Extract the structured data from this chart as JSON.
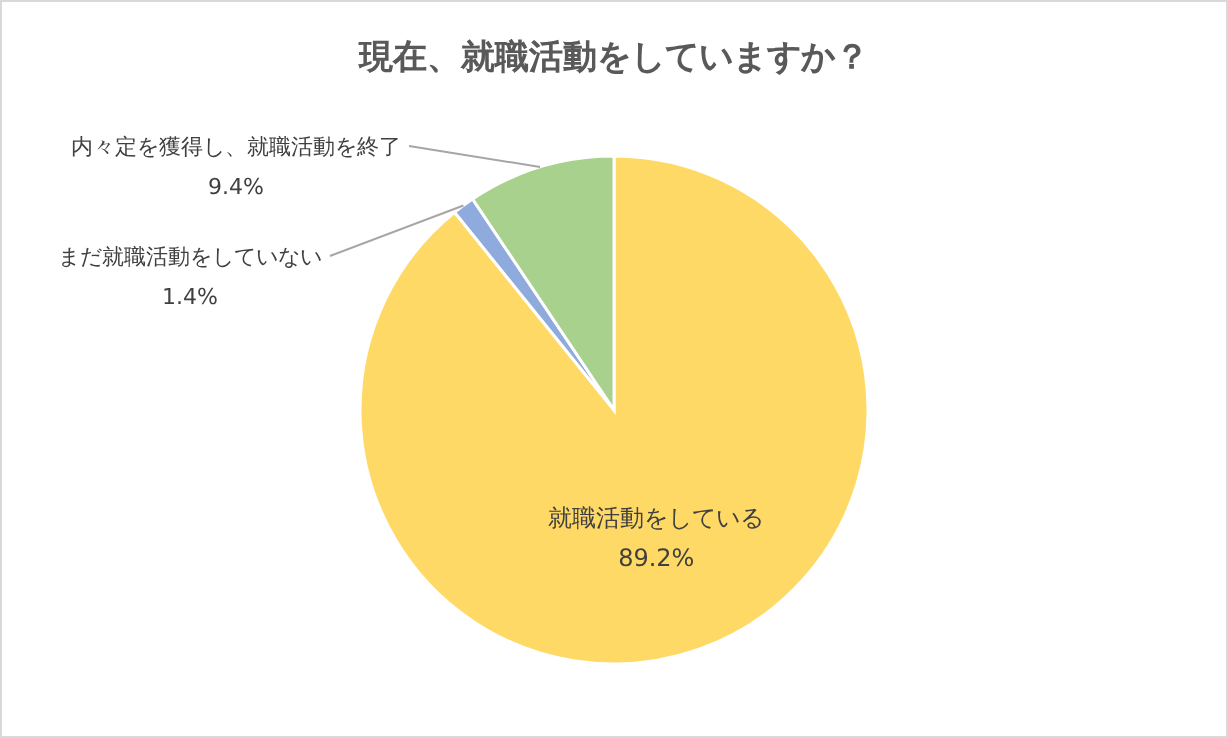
{
  "chart_data": {
    "type": "pie",
    "title": "現在、就職活動をしていますか？",
    "categories": [
      "就職活動をしている",
      "まだ就職活動をしていない",
      "内々定を獲得し、就職活動を終了"
    ],
    "values": [
      89.2,
      1.4,
      9.4
    ],
    "colors": [
      "#ffd966",
      "#8faadc",
      "#a9d18e"
    ],
    "value_labels": [
      "89.2%",
      "1.4%",
      "9.4%"
    ],
    "legend": false
  }
}
